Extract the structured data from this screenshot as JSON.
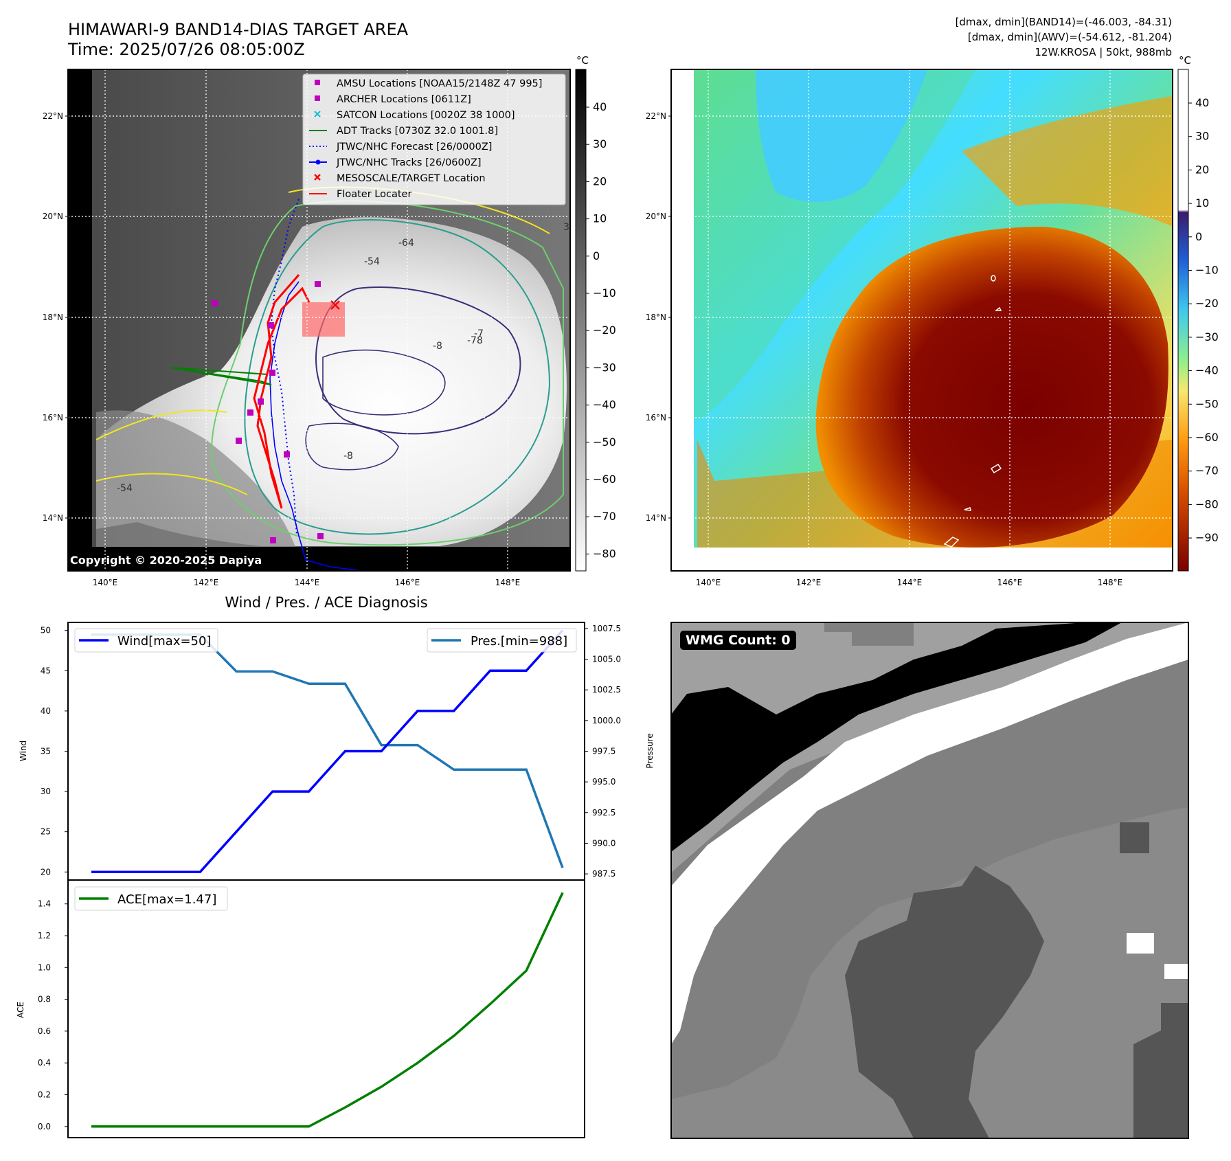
{
  "header": {
    "title_line1": "HIMAWARI-9 BAND14-DIAS TARGET AREA",
    "title_line2": "Time: 2025/07/26 08:05:00Z",
    "stats_line1": "[dmax, dmin](BAND14)=(-46.003, -84.31)",
    "stats_line2": "[dmax, dmin](AWV)=(-54.612, -81.204)",
    "stats_line3": "12W.KROSA | 50kt, 988mb"
  },
  "map_axes": {
    "lat_labels": [
      "22°N",
      "20°N",
      "18°N",
      "16°N",
      "14°N"
    ],
    "lon_labels": [
      "140°E",
      "142°E",
      "144°E",
      "146°E",
      "148°E"
    ],
    "unit": "°C"
  },
  "ir_panel": {
    "copyright": "Copyright © 2020-2025 Dapiya",
    "colorbar_ticks": [
      "40",
      "30",
      "20",
      "10",
      "0",
      "−10",
      "−20",
      "−30",
      "−40",
      "−50",
      "−60",
      "−70",
      "−80"
    ],
    "contour_labels": [
      "-54",
      "-64",
      "-78",
      "-8",
      "-54",
      "-8",
      "3",
      "-7"
    ],
    "legend": [
      {
        "label": "AMSU Locations [NOAA15/2148Z 47 995]",
        "marker": "square",
        "color": "#bf00bf"
      },
      {
        "label": "ARCHER Locations [0611Z]",
        "marker": "square",
        "color": "#bf00bf"
      },
      {
        "label": "SATCON Locations [0020Z 38 1000]",
        "marker": "x",
        "color": "#17becf"
      },
      {
        "label": "ADT Tracks [0730Z 32.0 1001.8]",
        "marker": "line",
        "color": "#008000"
      },
      {
        "label": "JTWC/NHC Forecast [26/0000Z]",
        "marker": "dotted",
        "color": "#0000ff"
      },
      {
        "label": "JTWC/NHC Tracks [26/0600Z]",
        "marker": "line-dot",
        "color": "#0000ff"
      },
      {
        "label": "MESOSCALE/TARGET Location",
        "marker": "x",
        "color": "#ff0000"
      },
      {
        "label": "Floater Locater",
        "marker": "line",
        "color": "#ff0000"
      }
    ]
  },
  "awv_panel": {
    "colorbar_ticks": [
      "40",
      "30",
      "20",
      "10",
      "0",
      "−10",
      "−20",
      "−30",
      "−40",
      "−50",
      "−60",
      "−70",
      "−80",
      "−90"
    ]
  },
  "diag_panel": {
    "title": "Wind / Pres. / ACE Diagnosis",
    "wind_ylabel": "Wind",
    "pres_ylabel": "Pressure",
    "ace_ylabel": "ACE",
    "wind_ticks": [
      "50",
      "45",
      "40",
      "35",
      "30",
      "25",
      "20"
    ],
    "pres_ticks": [
      "1007.5",
      "1005.0",
      "1002.5",
      "1000.0",
      "997.5",
      "995.0",
      "992.5",
      "990.0",
      "987.5"
    ],
    "ace_ticks": [
      "1.4",
      "1.2",
      "1.0",
      "0.8",
      "0.6",
      "0.4",
      "0.2",
      "0.0"
    ],
    "legend_wind": "Wind[max=50]",
    "legend_pres": "Pres.[min=988]",
    "legend_ace": "ACE[max=1.47]"
  },
  "wmg_panel": {
    "badge": "WMG Count: 0"
  },
  "chart_data": [
    {
      "type": "line",
      "title": "Wind / Pres. / ACE Diagnosis",
      "ylabel": "Wind",
      "ylim": [
        19,
        51
      ],
      "x": [
        0,
        1,
        2,
        3,
        4,
        5,
        6,
        7,
        8,
        9,
        10,
        11,
        12,
        13
      ],
      "series": [
        {
          "name": "Wind[max=50]",
          "color": "#0000ff",
          "values": [
            20,
            20,
            20,
            20,
            25,
            30,
            30,
            35,
            35,
            40,
            40,
            45,
            45,
            50
          ]
        }
      ]
    },
    {
      "type": "line",
      "ylabel": "Pressure",
      "ylim": [
        987.0,
        1008.0
      ],
      "x": [
        0,
        1,
        2,
        3,
        4,
        5,
        6,
        7,
        8,
        9,
        10,
        11,
        12,
        13
      ],
      "series": [
        {
          "name": "Pres.[min=988]",
          "color": "#1f77b4",
          "values": [
            1007,
            1007,
            1007,
            1007,
            1004,
            1004,
            1003,
            1003,
            998,
            998,
            996,
            996,
            996,
            988
          ]
        }
      ]
    },
    {
      "type": "line",
      "ylabel": "ACE",
      "ylim": [
        -0.07,
        1.55
      ],
      "x": [
        0,
        1,
        2,
        3,
        4,
        5,
        6,
        7,
        8,
        9,
        10,
        11,
        12,
        13
      ],
      "series": [
        {
          "name": "ACE[max=1.47]",
          "color": "#008000",
          "values": [
            0,
            0,
            0,
            0,
            0,
            0,
            0,
            0.12,
            0.25,
            0.4,
            0.57,
            0.77,
            0.98,
            1.47
          ]
        }
      ]
    }
  ]
}
